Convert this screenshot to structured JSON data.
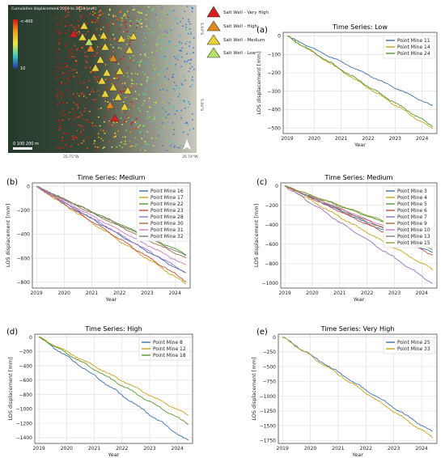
{
  "map": {
    "colorbar_title": "Cumulative displacement 2019 to 2024 [mm]",
    "colorbar_min_label": "<-400",
    "colorbar_max_label": "10",
    "scale_bar_label": "0  100 200 m",
    "lon_left": "35.75°W",
    "lon_right": "35.74°W",
    "lat_top": "5.93°S",
    "lat_bottom": "5.94°S",
    "legend": [
      {
        "label": "Salt Well - Very High",
        "color": "#d62020"
      },
      {
        "label": "Salt Well - High",
        "color": "#e08a1e"
      },
      {
        "label": "Salt Well - Medium",
        "color": "#e8d23a"
      },
      {
        "label": "Salt Well - Low",
        "color": "#b5e36a"
      }
    ]
  },
  "chart_data": [
    {
      "panel": "(a)",
      "type": "line",
      "title": "Time Series: Low",
      "xlabel": "Year",
      "ylabel": "LOS displacement [mm]",
      "x": [
        2019.0,
        2024.4
      ],
      "xticks": [
        2019,
        2020,
        2021,
        2022,
        2023,
        2024
      ],
      "yticks": [
        0,
        -100,
        -200,
        -300,
        -400,
        -500
      ],
      "ylim": [
        -530,
        20
      ],
      "grid": true,
      "legend_position": "top-right",
      "series": [
        {
          "name": "Point Mine 11",
          "color": "#3d6fb6",
          "values": [
            0,
            -380
          ]
        },
        {
          "name": "Point Mine 14",
          "color": "#c8a418",
          "values": [
            0,
            -505
          ]
        },
        {
          "name": "Point Mine 24",
          "color": "#5a9a2e",
          "values": [
            0,
            -490
          ]
        }
      ]
    },
    {
      "panel": "(b)",
      "type": "line",
      "title": "Time Series: Medium",
      "xlabel": "Year",
      "ylabel": "LOS displacement [mm]",
      "x": [
        2019.0,
        2024.4
      ],
      "xticks": [
        2019,
        2020,
        2021,
        2022,
        2023,
        2024
      ],
      "yticks": [
        0,
        -200,
        -400,
        -600,
        -800
      ],
      "ylim": [
        -850,
        30
      ],
      "grid": true,
      "legend_position": "top-right",
      "series": [
        {
          "name": "Point Mine 16",
          "color": "#3d6fb6",
          "values": [
            0,
            -730
          ]
        },
        {
          "name": "Point Mine 17",
          "color": "#c8a418",
          "values": [
            0,
            -815
          ]
        },
        {
          "name": "Point Mine 22",
          "color": "#5a9a2e",
          "values": [
            0,
            -565
          ]
        },
        {
          "name": "Point Mine 23",
          "color": "#c84e3c",
          "values": [
            0,
            -790
          ]
        },
        {
          "name": "Point Mine 28",
          "color": "#9a70c8",
          "values": [
            0,
            -720
          ]
        },
        {
          "name": "Point Mine 30",
          "color": "#a0703c",
          "values": [
            0,
            -600
          ]
        },
        {
          "name": "Point Mine 31",
          "color": "#d37cbf",
          "values": [
            0,
            -660
          ]
        },
        {
          "name": "Point Mine 32",
          "color": "#7f7f7f",
          "values": [
            0,
            -580
          ]
        }
      ]
    },
    {
      "panel": "(c)",
      "type": "line",
      "title": "Time Series: Medium",
      "xlabel": "Year",
      "ylabel": "LOS displacement [mm]",
      "x": [
        2019.0,
        2024.4
      ],
      "xticks": [
        2019,
        2020,
        2021,
        2022,
        2023,
        2024
      ],
      "yticks": [
        0,
        -200,
        -400,
        -600,
        -800,
        -1000
      ],
      "ylim": [
        -1050,
        30
      ],
      "grid": true,
      "legend_position": "top-right",
      "series": [
        {
          "name": "Point Mine 3",
          "color": "#3d6fb6",
          "values": [
            0,
            -690
          ]
        },
        {
          "name": "Point Mine 4",
          "color": "#c8a418",
          "values": [
            0,
            -860
          ]
        },
        {
          "name": "Point Mine 5",
          "color": "#5a9a2e",
          "values": [
            0,
            -560
          ]
        },
        {
          "name": "Point Mine 6",
          "color": "#c84e3c",
          "values": [
            0,
            -710
          ]
        },
        {
          "name": "Point Mine 7",
          "color": "#9a70c8",
          "values": [
            0,
            -1000
          ]
        },
        {
          "name": "Point Mine 9",
          "color": "#a0703c",
          "values": [
            0,
            -640
          ]
        },
        {
          "name": "Point Mine 10",
          "color": "#d37cbf",
          "values": [
            0,
            -620
          ]
        },
        {
          "name": "Point Mine 13",
          "color": "#7f7f7f",
          "values": [
            0,
            -660
          ]
        },
        {
          "name": "Point Mine 15",
          "color": "#8fa23a",
          "values": [
            0,
            -540
          ]
        }
      ]
    },
    {
      "panel": "(d)",
      "type": "line",
      "title": "Time Series: High",
      "xlabel": "Year",
      "ylabel": "LOS displacement [mm]",
      "x": [
        2019.0,
        2024.4
      ],
      "xticks": [
        2019,
        2020,
        2021,
        2022,
        2023,
        2024
      ],
      "yticks": [
        0,
        -200,
        -400,
        -600,
        -800,
        -1000,
        -1200,
        -1400
      ],
      "ylim": [
        -1480,
        40
      ],
      "grid": true,
      "legend_position": "top-right",
      "series": [
        {
          "name": "Point Mine 8",
          "color": "#3d6fb6",
          "values": [
            0,
            -1450
          ]
        },
        {
          "name": "Point Mine 12",
          "color": "#c8a418",
          "values": [
            0,
            -1090
          ]
        },
        {
          "name": "Point Mine 18",
          "color": "#5a9a2e",
          "values": [
            0,
            -1210
          ]
        }
      ]
    },
    {
      "panel": "(e)",
      "type": "line",
      "title": "Time Series: Very High",
      "xlabel": "Year",
      "ylabel": "LOS displacement [mm]",
      "x": [
        2019.0,
        2024.4
      ],
      "xticks": [
        2019,
        2020,
        2021,
        2022,
        2023,
        2024
      ],
      "yticks": [
        0,
        -250,
        -500,
        -750,
        -1000,
        -1250,
        -1500,
        -1750
      ],
      "ylim": [
        -1800,
        50
      ],
      "grid": true,
      "legend_position": "top-right",
      "series": [
        {
          "name": "Point Mine 25",
          "color": "#3d6fb6",
          "values": [
            0,
            -1610
          ]
        },
        {
          "name": "Point Mine 33",
          "color": "#c8a418",
          "values": [
            0,
            -1700
          ]
        }
      ]
    }
  ]
}
